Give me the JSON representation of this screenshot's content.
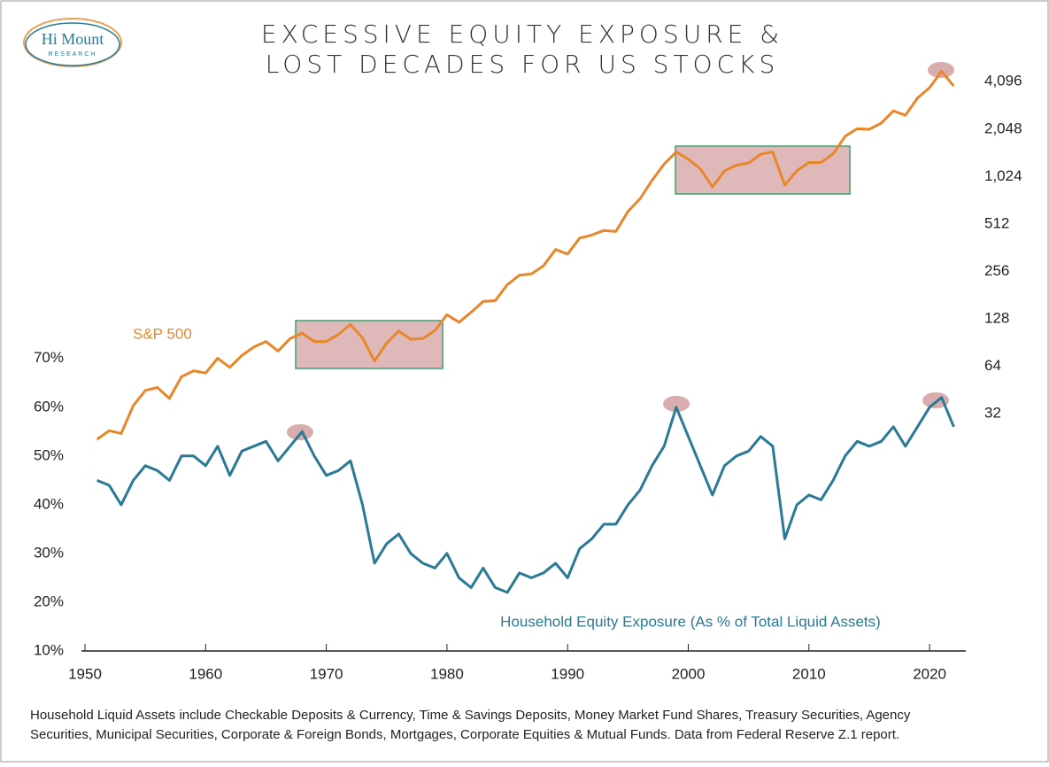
{
  "chart_data": {
    "type": "line",
    "title": [
      "EXCESSIVE EQUITY EXPOSURE &",
      "LOST DECADES FOR US STOCKS"
    ],
    "logo": {
      "name": "Hi Mount",
      "sub": "RESEARCH"
    },
    "x": [
      1951,
      1952,
      1953,
      1954,
      1955,
      1956,
      1957,
      1958,
      1959,
      1960,
      1961,
      1962,
      1963,
      1964,
      1965,
      1966,
      1967,
      1968,
      1969,
      1970,
      1971,
      1972,
      1973,
      1974,
      1975,
      1976,
      1977,
      1978,
      1979,
      1980,
      1981,
      1982,
      1983,
      1984,
      1985,
      1986,
      1987,
      1988,
      1989,
      1990,
      1991,
      1992,
      1993,
      1994,
      1995,
      1996,
      1997,
      1998,
      1999,
      2000,
      2001,
      2002,
      2003,
      2004,
      2005,
      2006,
      2007,
      2008,
      2009,
      2010,
      2011,
      2012,
      2013,
      2014,
      2015,
      2016,
      2017,
      2018,
      2019,
      2020,
      2021,
      2022
    ],
    "series": [
      {
        "name": "S&P 500",
        "color": "#e8872a",
        "axis": "y2",
        "values": [
          22,
          25,
          24,
          36,
          45,
          47,
          40,
          55,
          60,
          58,
          72,
          63,
          75,
          85,
          92,
          80,
          96,
          104,
          92,
          92,
          102,
          118,
          97,
          69,
          90,
          107,
          95,
          96,
          108,
          136,
          122,
          141,
          165,
          167,
          211,
          242,
          247,
          278,
          353,
          330,
          417,
          436,
          466,
          459,
          616,
          741,
          970,
          1229,
          1469,
          1320,
          1148,
          880,
          1112,
          1212,
          1248,
          1418,
          1468,
          903,
          1115,
          1258,
          1258,
          1426,
          1848,
          2059,
          2044,
          2239,
          2674,
          2507,
          3231,
          3756,
          4766,
          3840
        ]
      },
      {
        "name": "Household Equity Exposure (As % of Total Liquid Assets)",
        "color": "#2a7a96",
        "values": [
          45,
          44,
          40,
          45,
          48,
          47,
          45,
          50,
          50,
          48,
          52,
          46,
          51,
          52,
          53,
          49,
          52,
          55,
          50,
          46,
          47,
          49,
          40,
          28,
          32,
          34,
          30,
          28,
          27,
          30,
          25,
          23,
          27,
          23,
          22,
          26,
          25,
          26,
          28,
          25,
          31,
          33,
          36,
          36,
          40,
          43,
          48,
          52,
          60,
          54,
          48,
          42,
          48,
          50,
          51,
          54,
          52,
          33,
          40,
          42,
          41,
          45,
          50,
          53,
          52,
          53,
          56,
          52,
          56,
          60,
          62,
          56
        ]
      }
    ],
    "xlim": [
      1950,
      2023
    ],
    "xticks": [
      1950,
      1960,
      1970,
      1980,
      1990,
      2000,
      2010,
      2020
    ],
    "ylim": [
      10,
      129
    ],
    "yticks": [
      {
        "value": 10,
        "label": "10%"
      },
      {
        "value": 20,
        "label": "20%"
      },
      {
        "value": 30,
        "label": "30%"
      },
      {
        "value": 40,
        "label": "40%"
      },
      {
        "value": 50,
        "label": "50%"
      },
      {
        "value": 60,
        "label": "60%"
      },
      {
        "value": 70,
        "label": "70%"
      }
    ],
    "y2lim": [
      1,
      4800
    ],
    "y2scale": "log",
    "y2ticks": [
      32,
      64,
      128,
      256,
      512,
      {
        "value": 1024,
        "label": "1,024"
      },
      {
        "value": 2048,
        "label": "2,048"
      },
      {
        "value": 4096,
        "label": "4,096"
      }
    ],
    "notes": [
      "Household Liquid Assets include Checkable Deposits & Currency, Time & Savings Deposits, Money Market Fund Shares, Treasury Securities, Agency",
      "Securities, Municipal Securities, Corporate & Foreign Bonds, Mortgages, Corporate Equities & Mutual Funds. Data from Federal Reserve Z.1 report."
    ]
  }
}
